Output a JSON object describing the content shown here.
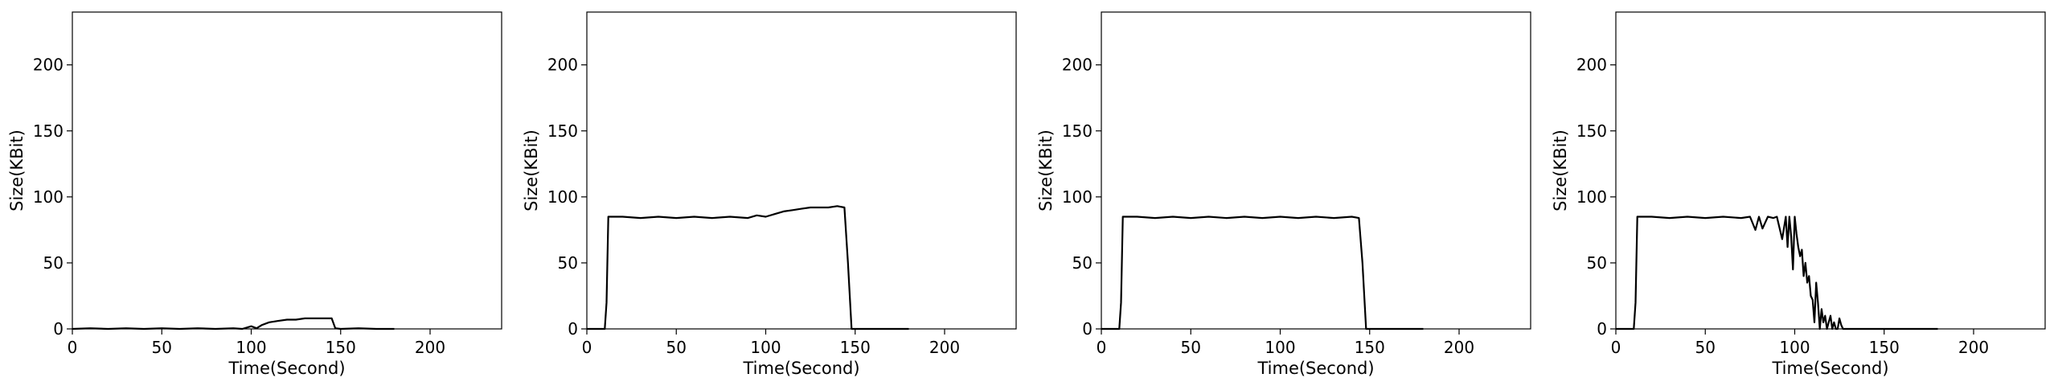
{
  "figure": {
    "panel_count": 4
  },
  "chart_data": [
    {
      "type": "line",
      "title": "",
      "xlabel": "Time(Second)",
      "ylabel": "Size(KBit)",
      "xlim": [
        0,
        240
      ],
      "ylim": [
        0,
        240
      ],
      "xticks": [
        0,
        50,
        100,
        150,
        200
      ],
      "yticks": [
        0,
        50,
        100,
        150,
        200
      ],
      "grid": false,
      "legend": "none",
      "color": "#000000",
      "series": [
        {
          "x": [
            0,
            10,
            20,
            30,
            40,
            50,
            60,
            70,
            80,
            90,
            95,
            100,
            103,
            106,
            110,
            115,
            120,
            125,
            130,
            135,
            140,
            145,
            147,
            150,
            160,
            170,
            180
          ],
          "y": [
            0,
            0.5,
            0,
            0.5,
            0,
            0.5,
            0,
            0.5,
            0,
            0.5,
            0,
            2,
            0.5,
            3,
            5,
            6,
            7,
            7,
            8,
            8,
            8,
            8,
            0.5,
            0,
            0.5,
            0,
            0
          ]
        }
      ]
    },
    {
      "type": "line",
      "title": "",
      "xlabel": "Time(Second)",
      "ylabel": "Size(KBit)",
      "xlim": [
        0,
        240
      ],
      "ylim": [
        0,
        240
      ],
      "xticks": [
        0,
        50,
        100,
        150,
        200
      ],
      "yticks": [
        0,
        50,
        100,
        150,
        200
      ],
      "grid": false,
      "legend": "none",
      "color": "#000000",
      "series": [
        {
          "x": [
            0,
            8,
            10,
            11,
            12,
            20,
            30,
            40,
            50,
            60,
            70,
            80,
            90,
            95,
            100,
            105,
            110,
            115,
            120,
            125,
            130,
            135,
            140,
            144,
            146,
            148,
            150,
            160,
            170,
            180
          ],
          "y": [
            0,
            0,
            0,
            20,
            85,
            85,
            84,
            85,
            84,
            85,
            84,
            85,
            84,
            86,
            85,
            87,
            89,
            90,
            91,
            92,
            92,
            92,
            93,
            92,
            50,
            0,
            0,
            0,
            0,
            0
          ]
        }
      ]
    },
    {
      "type": "line",
      "title": "",
      "xlabel": "Time(Second)",
      "ylabel": "Size(KBit)",
      "xlim": [
        0,
        240
      ],
      "ylim": [
        0,
        240
      ],
      "xticks": [
        0,
        50,
        100,
        150,
        200
      ],
      "yticks": [
        0,
        50,
        100,
        150,
        200
      ],
      "grid": false,
      "legend": "none",
      "color": "#000000",
      "series": [
        {
          "x": [
            0,
            8,
            10,
            11,
            12,
            20,
            30,
            40,
            50,
            60,
            70,
            80,
            90,
            100,
            110,
            120,
            130,
            140,
            144,
            146,
            148,
            150,
            160,
            170,
            180
          ],
          "y": [
            0,
            0,
            0,
            20,
            85,
            85,
            84,
            85,
            84,
            85,
            84,
            85,
            84,
            85,
            84,
            85,
            84,
            85,
            84,
            50,
            0,
            0,
            0,
            0,
            0
          ]
        }
      ]
    },
    {
      "type": "line",
      "title": "",
      "xlabel": "Time(Second)",
      "ylabel": "Size(KBit)",
      "xlim": [
        0,
        240
      ],
      "ylim": [
        0,
        240
      ],
      "xticks": [
        0,
        50,
        100,
        150,
        200
      ],
      "yticks": [
        0,
        50,
        100,
        150,
        200
      ],
      "grid": false,
      "legend": "none",
      "color": "#000000",
      "series": [
        {
          "x": [
            0,
            8,
            10,
            11,
            12,
            20,
            30,
            40,
            50,
            60,
            70,
            75,
            78,
            80,
            82,
            85,
            88,
            90,
            93,
            95,
            96,
            97,
            98,
            99,
            100,
            101,
            102,
            103,
            104,
            105,
            106,
            107,
            108,
            109,
            110,
            111,
            112,
            113,
            114,
            115,
            116,
            117,
            118,
            119,
            120,
            121,
            122,
            123,
            124,
            125,
            126,
            127,
            128,
            129,
            130,
            135,
            140,
            150,
            160,
            170,
            180
          ],
          "y": [
            0,
            0,
            0,
            20,
            85,
            85,
            84,
            85,
            84,
            85,
            84,
            85,
            75,
            85,
            76,
            85,
            84,
            85,
            68,
            85,
            62,
            85,
            70,
            45,
            85,
            72,
            62,
            55,
            60,
            40,
            50,
            35,
            40,
            25,
            22,
            5,
            35,
            20,
            0,
            15,
            5,
            10,
            0,
            5,
            10,
            0,
            5,
            0,
            0,
            8,
            3,
            0,
            0,
            0,
            0,
            0,
            0,
            0,
            0,
            0,
            0
          ]
        }
      ]
    }
  ]
}
